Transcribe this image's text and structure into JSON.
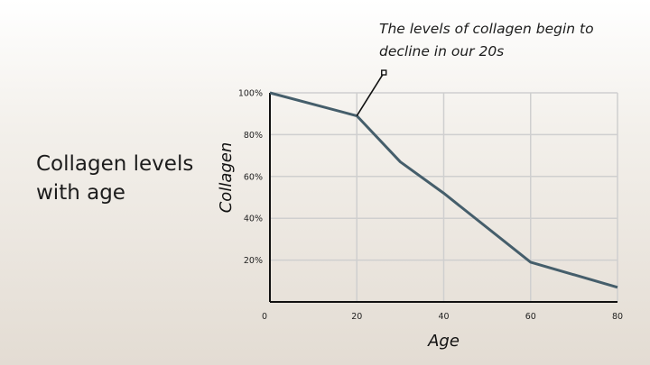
{
  "slide": {
    "title": "Collagen levels with age",
    "annotation": "The levels of collagen begin to decline in our 20s"
  },
  "colors": {
    "line": "#455e6b",
    "grid": "#cfcfcf",
    "axis": "#111111"
  },
  "chart_data": {
    "type": "line",
    "title": "",
    "xlabel": "Age",
    "ylabel": "Collagen",
    "x_ticks": [
      "0",
      "20",
      "40",
      "60",
      "80"
    ],
    "y_ticks": [
      "20%",
      "40%",
      "60%",
      "80%",
      "100%"
    ],
    "xlim": [
      0,
      80
    ],
    "ylim": [
      0,
      100
    ],
    "grid": true,
    "series": [
      {
        "x": [
          0,
          20,
          30,
          40,
          60,
          80
        ],
        "y": [
          100,
          89,
          67,
          52,
          19,
          7
        ]
      }
    ],
    "annotation_point": {
      "x": 20,
      "y": 89
    }
  }
}
